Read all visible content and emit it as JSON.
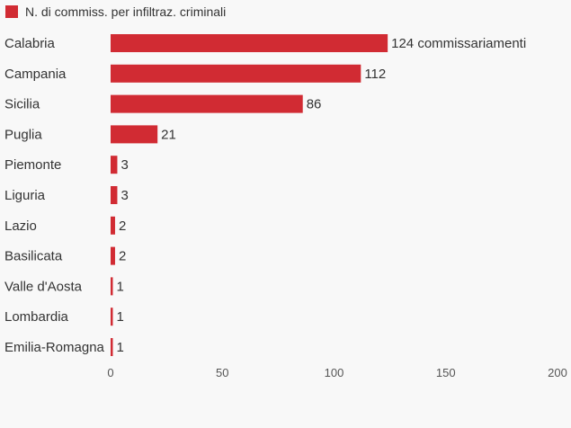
{
  "colors": {
    "bar": "#d12b33",
    "background": "#f8f8f8",
    "text": "#333333"
  },
  "legend": {
    "label": "N. di commiss. per infiltraz. criminali",
    "placement": "top-left"
  },
  "chart_data": {
    "type": "bar",
    "orientation": "horizontal",
    "title": "",
    "xlabel": "",
    "ylabel": "",
    "xlim": [
      0,
      200
    ],
    "x_ticks": [
      0,
      50,
      100,
      150,
      200
    ],
    "grid": false,
    "categories": [
      "Calabria",
      "Campania",
      "Sicilia",
      "Puglia",
      "Piemonte",
      "Liguria",
      "Lazio",
      "Basilicata",
      "Valle d'Aosta",
      "Lombardia",
      "Emilia-Romagna"
    ],
    "series": [
      {
        "name": "N. di commiss. per infiltraz. criminali",
        "values": [
          124,
          112,
          86,
          21,
          3,
          3,
          2,
          2,
          1,
          1,
          1
        ]
      }
    ],
    "value_labels": [
      "124 commissariamenti",
      "112",
      "86",
      "21",
      "3",
      "3",
      "2",
      "2",
      "1",
      "1",
      "1"
    ]
  }
}
